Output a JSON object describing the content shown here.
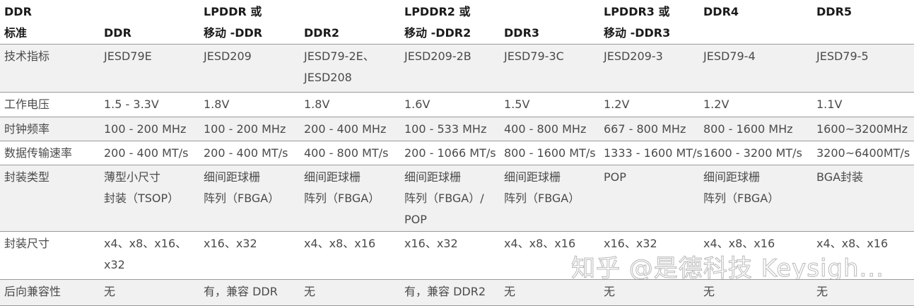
{
  "table": {
    "header": [
      [
        "DDR",
        "标准"
      ],
      [
        "DDR"
      ],
      [
        "LPDDR 或",
        "移动 -DDR"
      ],
      [
        "DDR2"
      ],
      [
        "LPDDR2 或",
        "移动 -DDR2"
      ],
      [
        "DDR3"
      ],
      [
        "LPDDR3 或",
        "移动 -DDR3"
      ],
      [
        "DDR4"
      ],
      [
        "DDR5"
      ]
    ],
    "rows": [
      [
        [
          "技术指标"
        ],
        [
          "JESD79E"
        ],
        [
          "JESD209"
        ],
        [
          "JESD79-2E、",
          "JESD208"
        ],
        [
          "JESD209-2B"
        ],
        [
          "JESD79-3C"
        ],
        [
          "JESD209-3"
        ],
        [
          "JESD79-4"
        ],
        [
          "JESD79-5"
        ]
      ],
      [
        [
          "工作电压"
        ],
        [
          "1.5 - 3.3V"
        ],
        [
          "1.8V"
        ],
        [
          "1.8V"
        ],
        [
          "1.6V"
        ],
        [
          "1.5V"
        ],
        [
          "1.2V"
        ],
        [
          "1.2V"
        ],
        [
          "1.1V"
        ]
      ],
      [
        [
          "时钟频率"
        ],
        [
          "100 - 200 MHz"
        ],
        [
          "100 - 200 MHz"
        ],
        [
          "200 - 400 MHz"
        ],
        [
          "100 - 533 MHz"
        ],
        [
          "400 - 800 MHz"
        ],
        [
          "667 - 800 MHz"
        ],
        [
          "800 - 1600 MHz"
        ],
        [
          "1600~3200MHz"
        ]
      ],
      [
        [
          "数据传输速率"
        ],
        [
          "200 - 400 MT/s"
        ],
        [
          "200 - 400 MT/s"
        ],
        [
          "400 - 800 MT/s"
        ],
        [
          "200 - 1066 MT/s"
        ],
        [
          "800 - 1600 MT/s"
        ],
        [
          "1333 - 1600 MT/s"
        ],
        [
          "1600 - 3200 MT/s"
        ],
        [
          "3200~6400MT/s"
        ]
      ],
      [
        [
          "封装类型"
        ],
        [
          "薄型小尺寸",
          "封装（TSOP）"
        ],
        [
          "细间距球栅",
          "阵列（FBGA）"
        ],
        [
          "细间距球栅",
          "阵列（FBGA）"
        ],
        [
          "细间距球栅",
          "阵列（FBGA）/",
          "POP"
        ],
        [
          "细间距球栅",
          "阵列（FBGA）"
        ],
        [
          "POP"
        ],
        [
          "细间距球栅",
          "阵列（FBGA）"
        ],
        [
          "BGA封装"
        ]
      ],
      [
        [
          "封装尺寸"
        ],
        [
          "x4、x8、x16、",
          "x32"
        ],
        [
          "x16、x32"
        ],
        [
          "x4、x8、x16"
        ],
        [
          "x16、x32"
        ],
        [
          "x4、x8、x16"
        ],
        [
          "x16、x32"
        ],
        [
          "x4、x8、x16"
        ],
        [
          "x4、x8、x16"
        ]
      ],
      [
        [
          "后向兼容性"
        ],
        [
          "无"
        ],
        [
          "有，兼容 DDR"
        ],
        [
          "无"
        ],
        [
          "有，兼容 DDR2"
        ],
        [
          "无"
        ],
        [
          "无"
        ],
        [
          "无"
        ],
        [
          "无"
        ]
      ]
    ]
  },
  "watermark": "知乎 @是德科技 Keysigh..."
}
